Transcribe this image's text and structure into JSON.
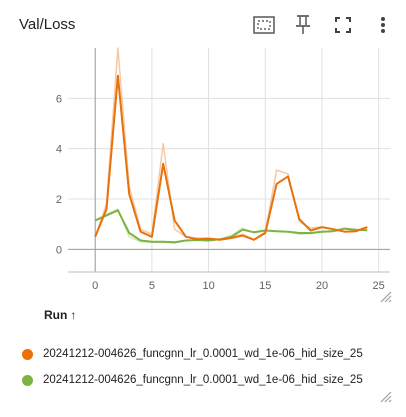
{
  "card": {
    "title": "Val/Loss",
    "icons": [
      "fit-domain-icon",
      "pin-icon",
      "fullscreen-icon",
      "more-vert-icon"
    ]
  },
  "colors": {
    "series1": "#e8710a",
    "series1_raw": "#f5c9a8",
    "series2": "#7cb342",
    "series2_raw": "#d4e9c2",
    "grid": "#e0e0e0",
    "axis_tick": "#616161"
  },
  "chart_data": {
    "type": "line",
    "title": "Val/Loss",
    "xlabel": "",
    "ylabel": "",
    "xlim": [
      -2.4,
      26
    ],
    "ylim": [
      -0.9,
      8.0
    ],
    "x_ticks": [
      0,
      5,
      10,
      15,
      20,
      25
    ],
    "y_ticks": [
      0,
      2,
      4,
      6
    ],
    "grid": true,
    "legend_position": "bottom",
    "series": [
      {
        "name": "20241212-004626_funcgnn_lr_0.0001_wd_1e-06_hid_size_25",
        "color": "#e8710a",
        "x": [
          0,
          1,
          2,
          3,
          4,
          5,
          6,
          7,
          8,
          9,
          10,
          11,
          12,
          13,
          14,
          15,
          16,
          17,
          18,
          19,
          20,
          21,
          22,
          23,
          24
        ],
        "smoothed": [
          0.5,
          1.6,
          6.9,
          2.2,
          0.7,
          0.5,
          3.4,
          1.15,
          0.5,
          0.4,
          0.42,
          0.38,
          0.45,
          0.55,
          0.38,
          0.65,
          2.6,
          2.9,
          1.2,
          0.75,
          0.88,
          0.8,
          0.7,
          0.72,
          0.88
        ],
        "raw": [
          0.5,
          1.8,
          8.0,
          2.5,
          0.8,
          0.6,
          4.2,
          0.8,
          0.5,
          0.45,
          0.45,
          0.4,
          0.5,
          0.6,
          0.4,
          0.7,
          3.15,
          3.0,
          1.1,
          0.85,
          0.9,
          0.8,
          0.7,
          0.75,
          0.9
        ]
      },
      {
        "name": "20241212-004626_funcgnn_lr_0.0001_wd_1e-06_hid_size_25",
        "color": "#7cb342",
        "x": [
          0,
          1,
          2,
          3,
          4,
          5,
          6,
          7,
          8,
          9,
          10,
          11,
          12,
          13,
          14,
          15,
          16,
          17,
          18,
          19,
          20,
          21,
          22,
          23,
          24
        ],
        "smoothed": [
          1.15,
          1.35,
          1.55,
          0.65,
          0.35,
          0.3,
          0.3,
          0.28,
          0.35,
          0.37,
          0.35,
          0.4,
          0.5,
          0.78,
          0.68,
          0.75,
          0.72,
          0.7,
          0.65,
          0.65,
          0.7,
          0.72,
          0.82,
          0.78,
          0.76
        ],
        "raw": [
          1.15,
          1.4,
          1.6,
          0.5,
          0.3,
          0.28,
          0.28,
          0.25,
          0.35,
          0.37,
          0.35,
          0.4,
          0.55,
          0.85,
          0.65,
          0.75,
          0.72,
          0.7,
          0.6,
          0.62,
          0.7,
          0.75,
          0.85,
          0.78,
          0.75
        ]
      }
    ]
  },
  "legend": {
    "header": "Run",
    "sort_glyph": "↑"
  }
}
